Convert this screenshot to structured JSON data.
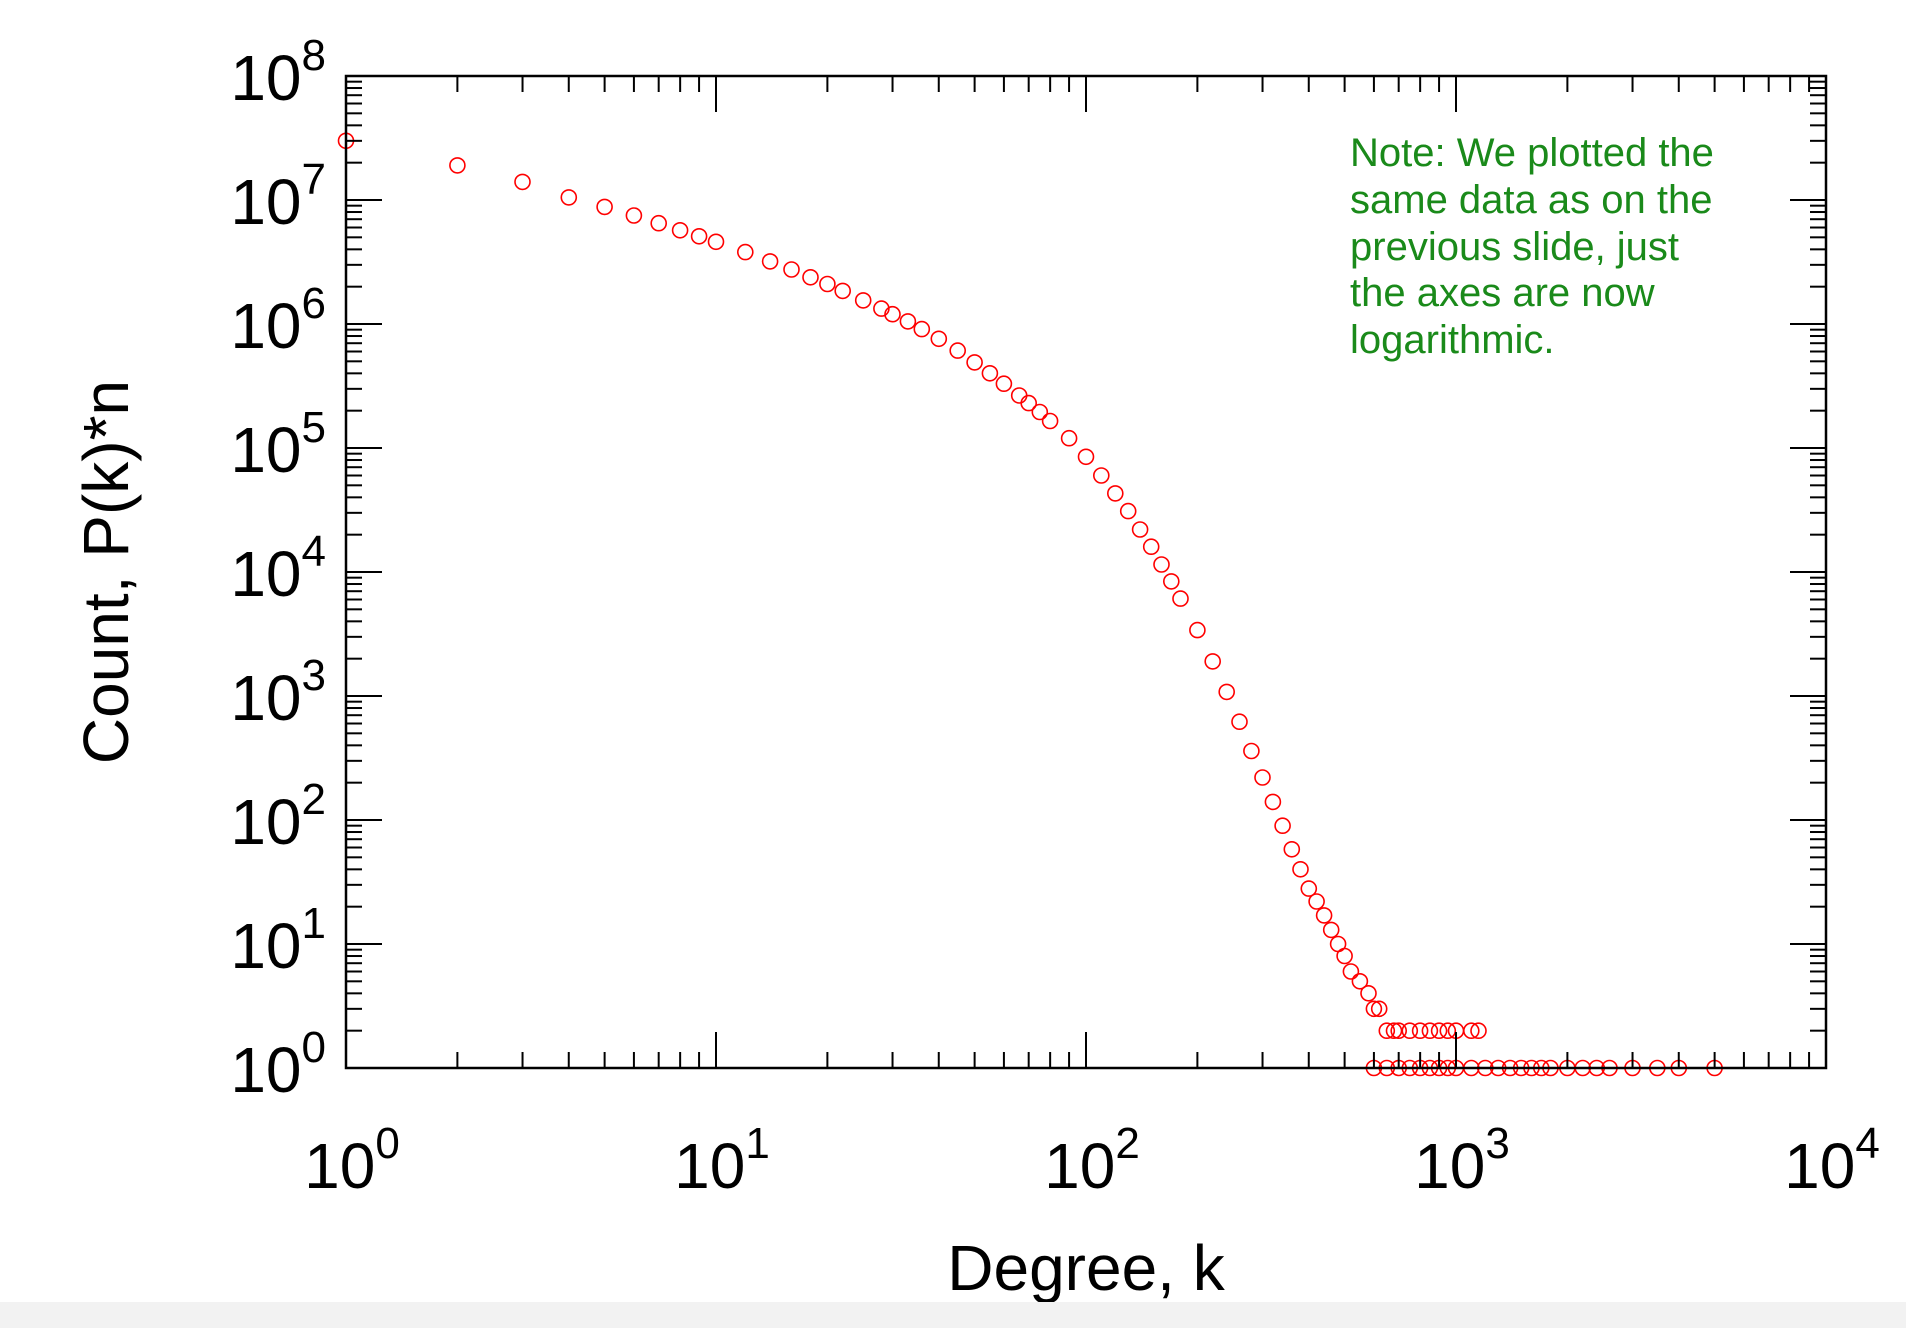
{
  "note": {
    "text": "Note: We plotted the\nsame data as on the\nprevious slide, just\nthe axes are now\nlogarithmic.",
    "color": "#1a8a1a"
  },
  "chart_data": {
    "type": "scatter",
    "xlabel": "Degree, k",
    "ylabel": "Count, P(k)*n",
    "xscale": "log",
    "yscale": "log",
    "xlim": [
      1,
      10000
    ],
    "ylim": [
      1,
      100000000
    ],
    "x_ticks": [
      {
        "base": "10",
        "exp": "0"
      },
      {
        "base": "10",
        "exp": "1"
      },
      {
        "base": "10",
        "exp": "2"
      },
      {
        "base": "10",
        "exp": "3"
      },
      {
        "base": "10",
        "exp": "4"
      }
    ],
    "y_ticks": [
      {
        "base": "10",
        "exp": "0"
      },
      {
        "base": "10",
        "exp": "1"
      },
      {
        "base": "10",
        "exp": "2"
      },
      {
        "base": "10",
        "exp": "3"
      },
      {
        "base": "10",
        "exp": "4"
      },
      {
        "base": "10",
        "exp": "5"
      },
      {
        "base": "10",
        "exp": "6"
      },
      {
        "base": "10",
        "exp": "7"
      },
      {
        "base": "10",
        "exp": "8"
      }
    ],
    "grid": false,
    "marker": "open-circle",
    "marker_color": "#ff0000",
    "series": [
      {
        "points": [
          [
            1,
            30000000
          ],
          [
            2,
            19000000
          ],
          [
            3,
            14000000
          ],
          [
            4,
            10500000
          ],
          [
            5,
            8800000
          ],
          [
            6,
            7500000
          ],
          [
            7,
            6500000
          ],
          [
            8,
            5700000
          ],
          [
            9,
            5100000
          ],
          [
            10,
            4600000
          ],
          [
            12,
            3800000
          ],
          [
            14,
            3200000
          ],
          [
            16,
            2750000
          ],
          [
            18,
            2380000
          ],
          [
            20,
            2100000
          ],
          [
            22,
            1850000
          ],
          [
            25,
            1550000
          ],
          [
            28,
            1330000
          ],
          [
            30,
            1200000
          ],
          [
            33,
            1050000
          ],
          [
            36,
            910000
          ],
          [
            40,
            760000
          ],
          [
            45,
            610000
          ],
          [
            50,
            490000
          ],
          [
            55,
            400000
          ],
          [
            60,
            330000
          ],
          [
            66,
            265000
          ],
          [
            70,
            230000
          ],
          [
            75,
            195000
          ],
          [
            80,
            165000
          ],
          [
            90,
            120000
          ],
          [
            100,
            85000
          ],
          [
            110,
            60000
          ],
          [
            120,
            43000
          ],
          [
            130,
            31000
          ],
          [
            140,
            22000
          ],
          [
            150,
            16000
          ],
          [
            160,
            11500
          ],
          [
            170,
            8400
          ],
          [
            180,
            6100
          ],
          [
            200,
            3400
          ],
          [
            220,
            1900
          ],
          [
            240,
            1080
          ],
          [
            260,
            620
          ],
          [
            280,
            360
          ],
          [
            300,
            220
          ],
          [
            320,
            140
          ],
          [
            340,
            90
          ],
          [
            360,
            58
          ],
          [
            380,
            40
          ],
          [
            400,
            28
          ],
          [
            420,
            22
          ],
          [
            440,
            17
          ],
          [
            460,
            13
          ],
          [
            480,
            10
          ],
          [
            500,
            8
          ],
          [
            520,
            6
          ],
          [
            550,
            5
          ],
          [
            580,
            4
          ],
          [
            600,
            3
          ],
          [
            620,
            3
          ],
          [
            650,
            2
          ],
          [
            680,
            2
          ],
          [
            700,
            2
          ],
          [
            750,
            2
          ],
          [
            800,
            2
          ],
          [
            850,
            2
          ],
          [
            900,
            2
          ],
          [
            950,
            2
          ],
          [
            1000,
            2
          ],
          [
            1100,
            2
          ],
          [
            1150,
            2
          ],
          [
            600,
            1
          ],
          [
            650,
            1
          ],
          [
            700,
            1
          ],
          [
            750,
            1
          ],
          [
            800,
            1
          ],
          [
            850,
            1
          ],
          [
            900,
            1
          ],
          [
            950,
            1
          ],
          [
            1000,
            1
          ],
          [
            1100,
            1
          ],
          [
            1200,
            1
          ],
          [
            1300,
            1
          ],
          [
            1400,
            1
          ],
          [
            1500,
            1
          ],
          [
            1600,
            1
          ],
          [
            1700,
            1
          ],
          [
            1800,
            1
          ],
          [
            2000,
            1
          ],
          [
            2200,
            1
          ],
          [
            2400,
            1
          ],
          [
            2600,
            1
          ],
          [
            3000,
            1
          ],
          [
            3500,
            1
          ],
          [
            4000,
            1
          ],
          [
            5000,
            1
          ]
        ]
      }
    ]
  }
}
